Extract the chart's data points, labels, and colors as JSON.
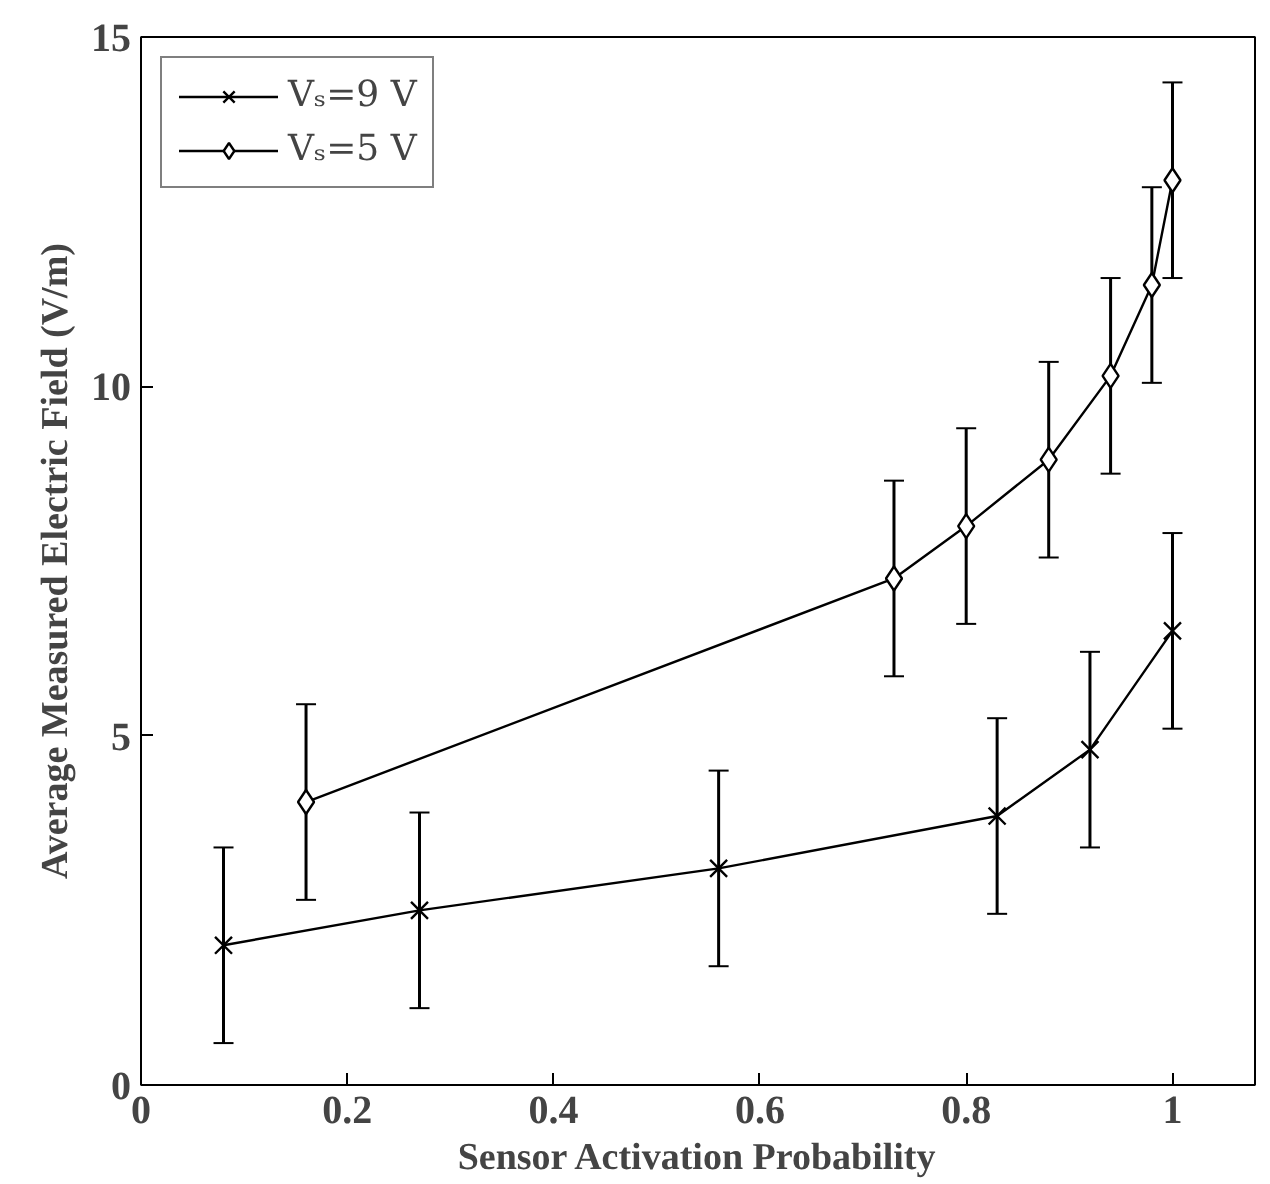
{
  "chart_data": {
    "type": "line",
    "xlabel": "Sensor Activation Probability",
    "ylabel": "Average Measured Electric Field (V/m)",
    "xlim": [
      0,
      1.08
    ],
    "ylim": [
      0,
      15
    ],
    "xticks": [
      0,
      0.2,
      0.4,
      0.6,
      0.8,
      1
    ],
    "yticks": [
      0,
      5,
      10,
      15
    ],
    "grid": false,
    "legend": "top left",
    "line_style": "solid",
    "series": [
      {
        "name": "Vₛ=9 V",
        "color": "#000000",
        "marker": "x",
        "x": [
          0.08,
          0.27,
          0.56,
          0.83,
          0.92,
          1.0
        ],
        "values": [
          2.0,
          2.5,
          3.1,
          3.85,
          4.8,
          6.5
        ],
        "errors": [
          1.4,
          1.4,
          1.4,
          1.4,
          1.4,
          1.4
        ]
      },
      {
        "name": "Vₛ=5 V",
        "color": "#000000",
        "marker": "diamond",
        "x": [
          0.16,
          0.73,
          0.8,
          0.88,
          0.94,
          0.98,
          1.0
        ],
        "values": [
          4.05,
          7.25,
          8.0,
          8.95,
          10.15,
          11.45,
          12.95
        ],
        "errors": [
          1.4,
          1.4,
          1.4,
          1.4,
          1.4,
          1.4,
          1.4
        ]
      }
    ]
  }
}
